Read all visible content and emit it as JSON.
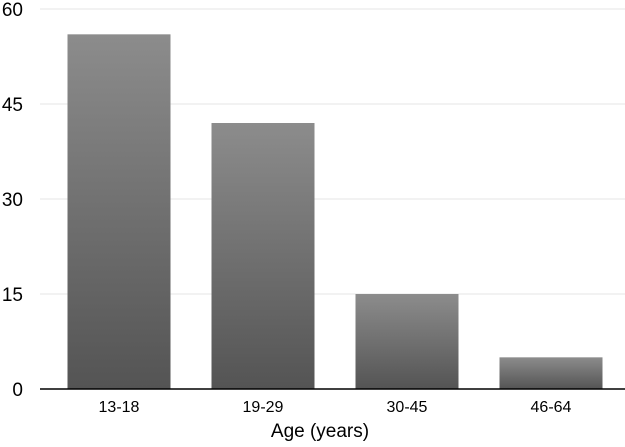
{
  "chart_data": {
    "type": "bar",
    "categories": [
      "13-18",
      "19-29",
      "30-45",
      "46-64"
    ],
    "values": [
      56,
      42,
      15,
      5
    ],
    "title": "",
    "xlabel": "Age (years)",
    "ylabel": "",
    "ylim": [
      0,
      60
    ],
    "yticks": [
      0,
      15,
      30,
      45,
      60
    ],
    "grid": true,
    "legend": "none",
    "colors": {
      "bar_top": "#8c8c8c",
      "bar_bottom": "#545454",
      "gridline": "#e6e6e6",
      "axis": "#000000"
    }
  }
}
